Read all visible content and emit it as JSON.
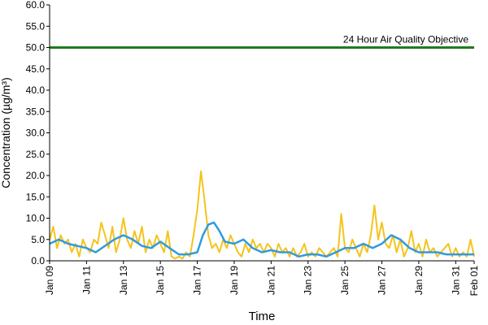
{
  "chart_data": {
    "type": "line",
    "title": "",
    "xlabel": "Time",
    "ylabel": "Concentration (µg/m³)",
    "x_range": [
      9,
      32
    ],
    "ylim": [
      0,
      60
    ],
    "y_ticks": [
      0,
      5,
      10,
      15,
      20,
      25,
      30,
      35,
      40,
      45,
      50,
      55,
      60
    ],
    "y_tick_labels": [
      "0.0",
      "5.0",
      "10.0",
      "15.0",
      "20.0",
      "25.0",
      "30.0",
      "35.0",
      "40.0",
      "45.0",
      "50.0",
      "55.0",
      "60.0"
    ],
    "x_ticks": [
      9,
      11,
      13,
      15,
      17,
      19,
      21,
      23,
      25,
      27,
      29,
      31,
      32
    ],
    "x_tick_labels": [
      "Jan 09",
      "Jan 11",
      "Jan 13",
      "Jan 15",
      "Jan 17",
      "Jan 19",
      "Jan 21",
      "Jan 23",
      "Jan 25",
      "Jan 27",
      "Jan 29",
      "Jan 31",
      "Feb 01"
    ],
    "grid": false,
    "legend": "none",
    "objective": {
      "label": "24 Hour Air Quality Objective",
      "value": 50,
      "color": "#1f7a1f"
    },
    "series": [
      {
        "color": "#f5c31c",
        "x": [
          9.0,
          9.2,
          9.4,
          9.6,
          9.8,
          10.0,
          10.2,
          10.4,
          10.6,
          10.8,
          11.0,
          11.2,
          11.4,
          11.6,
          11.8,
          12.0,
          12.2,
          12.4,
          12.6,
          12.8,
          13.0,
          13.2,
          13.4,
          13.6,
          13.8,
          14.0,
          14.2,
          14.4,
          14.6,
          14.8,
          15.0,
          15.2,
          15.4,
          15.6,
          15.8,
          16.0,
          16.2,
          16.4,
          16.6,
          16.8,
          17.0,
          17.2,
          17.4,
          17.6,
          17.8,
          18.0,
          18.2,
          18.4,
          18.6,
          18.8,
          19.0,
          19.2,
          19.4,
          19.6,
          19.8,
          20.0,
          20.2,
          20.4,
          20.6,
          20.8,
          21.0,
          21.2,
          21.4,
          21.6,
          21.8,
          22.0,
          22.2,
          22.4,
          22.6,
          22.8,
          23.0,
          23.2,
          23.4,
          23.6,
          23.8,
          24.0,
          24.2,
          24.4,
          24.6,
          24.8,
          25.0,
          25.2,
          25.4,
          25.6,
          25.8,
          26.0,
          26.2,
          26.4,
          26.6,
          26.8,
          27.0,
          27.2,
          27.4,
          27.6,
          27.8,
          28.0,
          28.2,
          28.4,
          28.6,
          28.8,
          29.0,
          29.2,
          29.4,
          29.6,
          29.8,
          30.0,
          30.2,
          30.4,
          30.6,
          30.8,
          31.0,
          31.2,
          31.4,
          31.6,
          31.8,
          32.0
        ],
        "values": [
          5,
          8,
          3,
          6,
          4,
          5,
          2,
          4,
          1,
          5,
          3,
          2,
          5,
          4,
          9,
          6,
          3,
          8,
          2,
          5,
          10,
          5,
          3,
          7,
          4,
          8,
          2,
          5,
          3,
          6,
          4,
          2,
          7,
          1,
          0.5,
          1,
          0.5,
          2,
          1,
          6,
          12,
          21,
          14,
          6,
          3,
          4,
          2,
          5,
          3,
          6,
          4,
          2,
          1,
          4,
          2,
          5,
          3,
          4,
          2,
          4,
          3,
          1,
          4,
          2,
          3,
          1,
          3,
          1,
          2,
          4,
          1,
          2,
          1,
          3,
          2,
          1,
          2,
          3,
          1,
          11,
          3,
          2,
          5,
          3,
          1,
          4,
          2,
          6,
          13,
          5,
          9,
          4,
          3,
          6,
          2,
          5,
          1,
          3,
          7,
          2,
          4,
          1,
          5,
          2,
          3,
          1,
          2,
          3,
          4,
          1,
          3,
          1,
          2,
          1,
          5,
          1
        ]
      },
      {
        "color": "#2f9be0",
        "x": [
          9.0,
          9.5,
          10.0,
          10.5,
          11.0,
          11.5,
          12.0,
          12.5,
          13.0,
          13.5,
          14.0,
          14.5,
          15.0,
          15.5,
          16.0,
          16.5,
          17.0,
          17.3,
          17.6,
          17.9,
          18.2,
          18.5,
          19.0,
          19.5,
          20.0,
          20.5,
          21.0,
          21.5,
          22.0,
          22.5,
          23.0,
          23.5,
          24.0,
          24.5,
          25.0,
          25.5,
          26.0,
          26.5,
          27.0,
          27.5,
          28.0,
          28.5,
          29.0,
          29.5,
          30.0,
          30.5,
          31.0,
          31.5,
          32.0
        ],
        "values": [
          4,
          5,
          4,
          3.5,
          3,
          2,
          3.5,
          5,
          6,
          5,
          3.5,
          3,
          4.5,
          3,
          1.5,
          1.5,
          2,
          6,
          8.5,
          9,
          7,
          4.5,
          4,
          5,
          3,
          2,
          2.5,
          2,
          2,
          1,
          1.5,
          1.5,
          1,
          2,
          3,
          3,
          4,
          3,
          4,
          6,
          5,
          3,
          2,
          2,
          2,
          1.5,
          1.5,
          1.5,
          1.5
        ]
      }
    ]
  }
}
